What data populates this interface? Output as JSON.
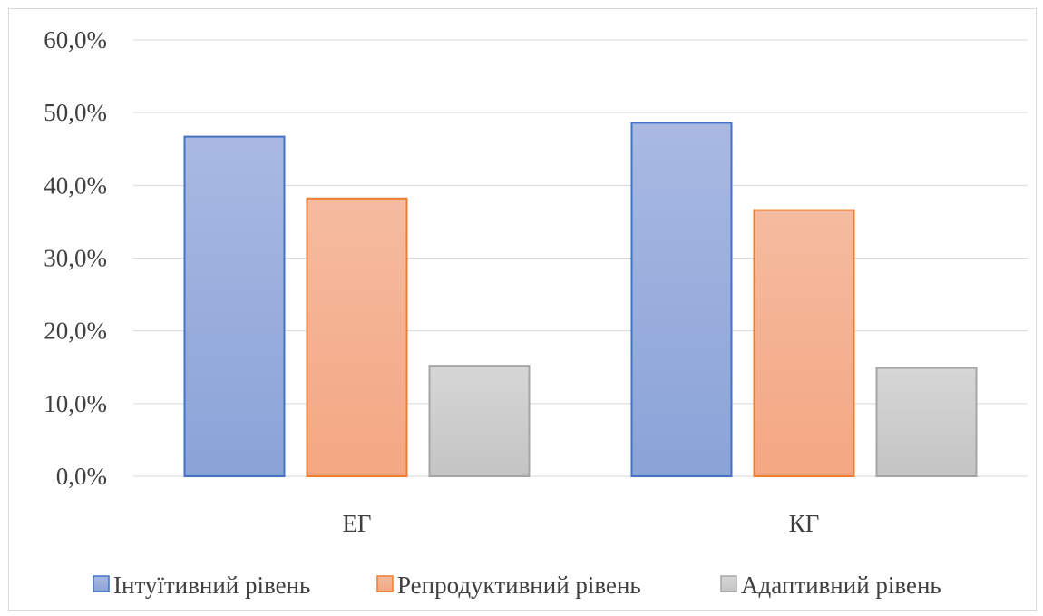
{
  "chart_data": {
    "type": "bar",
    "categories": [
      "ЕГ",
      "КГ"
    ],
    "series": [
      {
        "name": "Інтуїтивний рівень",
        "values": [
          46.7,
          48.6
        ],
        "color": "#4472c4",
        "fill_top": "#a9b9e2",
        "fill_bottom": "#8aa3d8"
      },
      {
        "name": "Репродуктивний рівень",
        "values": [
          38.2,
          36.6
        ],
        "color": "#ed7d31",
        "fill_top": "#f5bba0",
        "fill_bottom": "#f4a782"
      },
      {
        "name": "Адаптивний рівень",
        "values": [
          15.2,
          14.9
        ],
        "color": "#a5a5a5",
        "fill_top": "#d6d6d6",
        "fill_bottom": "#c4c4c4"
      }
    ],
    "ylim": [
      0,
      60
    ],
    "yticks": [
      "0,0%",
      "10,0%",
      "20,0%",
      "30,0%",
      "40,0%",
      "50,0%",
      "60,0%"
    ],
    "grid": true,
    "legend": "bottom"
  }
}
